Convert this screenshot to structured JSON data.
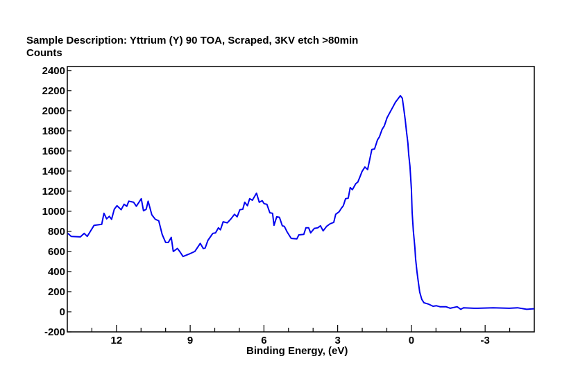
{
  "chart_data": {
    "type": "line",
    "title": "Sample Description:  Yttrium (Y) 90 TOA, Scraped, 3KV etch >80min",
    "ylabel": "Counts",
    "xlabel": "Binding Energy, (eV)",
    "xlim": [
      14,
      -5
    ],
    "ylim": [
      -200,
      2440
    ],
    "x_reversed": true,
    "grid": false,
    "x_ticks": [
      12,
      9,
      6,
      3,
      0,
      -3
    ],
    "x_tick_labels": [
      "12",
      "9",
      "6",
      "3",
      "0",
      "-3"
    ],
    "x_minor_step": 1,
    "y_ticks": [
      2400,
      2200,
      2000,
      1800,
      1600,
      1400,
      1200,
      1000,
      800,
      600,
      400,
      200,
      0,
      -200
    ],
    "y_tick_labels": [
      "2400",
      "2200",
      "2000",
      "1800",
      "1600",
      "1400",
      "1200",
      "1000",
      "800",
      "600",
      "400",
      "200",
      "0",
      "-200"
    ],
    "series": [
      {
        "name": "Yttrium (Y) 90 TOA",
        "color": "#0000ee",
        "x": [
          13.98,
          13.84,
          13.47,
          13.31,
          13.19,
          12.91,
          12.6,
          12.51,
          12.4,
          12.29,
          12.2,
          12.09,
          11.98,
          11.81,
          11.69,
          11.58,
          11.5,
          11.3,
          11.19,
          10.99,
          10.9,
          10.79,
          10.71,
          10.56,
          10.42,
          10.28,
          10.14,
          10.0,
          9.89,
          9.77,
          9.69,
          9.52,
          9.44,
          9.29,
          9.04,
          8.81,
          8.59,
          8.47,
          8.39,
          8.28,
          8.08,
          7.97,
          7.85,
          7.77,
          7.66,
          7.49,
          7.34,
          7.2,
          7.09,
          6.98,
          6.86,
          6.78,
          6.67,
          6.58,
          6.47,
          6.3,
          6.19,
          6.07,
          5.99,
          5.88,
          5.76,
          5.65,
          5.59,
          5.48,
          5.37,
          5.25,
          5.17,
          5.06,
          4.89,
          4.66,
          4.58,
          4.38,
          4.29,
          4.18,
          4.1,
          3.95,
          3.81,
          3.7,
          3.59,
          3.45,
          3.31,
          3.16,
          3.08,
          2.94,
          2.85,
          2.77,
          2.68,
          2.57,
          2.49,
          2.4,
          2.26,
          2.18,
          2.09,
          2.01,
          1.89,
          1.78,
          1.69,
          1.61,
          1.5,
          1.38,
          1.3,
          1.19,
          1.1,
          0.99,
          0.88,
          0.76,
          0.65,
          0.54,
          0.45,
          0.37,
          0.31,
          0.25,
          0.2,
          0.14,
          0.11,
          0.06,
          0.0,
          -0.03,
          -0.08,
          -0.14,
          -0.17,
          -0.23,
          -0.28,
          -0.34,
          -0.42,
          -0.51,
          -0.71,
          -0.88,
          -1.02,
          -1.16,
          -1.41,
          -1.58,
          -1.86,
          -2.01,
          -2.12,
          -2.54,
          -2.71,
          -3.33,
          -3.98,
          -4.32,
          -4.69,
          -5.0
        ],
        "y": [
          780,
          750,
          745,
          780,
          750,
          860,
          870,
          980,
          925,
          950,
          920,
          1020,
          1055,
          1015,
          1070,
          1050,
          1100,
          1090,
          1050,
          1125,
          1005,
          1020,
          1100,
          965,
          920,
          905,
          770,
          690,
          690,
          740,
          600,
          630,
          605,
          550,
          575,
          600,
          680,
          630,
          635,
          710,
          780,
          785,
          835,
          815,
          895,
          885,
          925,
          970,
          945,
          1015,
          1020,
          1090,
          1055,
          1125,
          1110,
          1180,
          1090,
          1105,
          1075,
          1070,
          985,
          980,
          860,
          945,
          940,
          855,
          850,
          795,
          730,
          725,
          765,
          770,
          835,
          835,
          785,
          830,
          835,
          855,
          805,
          850,
          875,
          890,
          970,
          995,
          1030,
          1055,
          1125,
          1130,
          1235,
          1215,
          1275,
          1290,
          1345,
          1395,
          1440,
          1415,
          1520,
          1615,
          1620,
          1710,
          1740,
          1815,
          1850,
          1930,
          1980,
          2035,
          2085,
          2120,
          2150,
          2125,
          2020,
          1910,
          1795,
          1675,
          1565,
          1450,
          1220,
          985,
          805,
          640,
          530,
          395,
          300,
          195,
          125,
          90,
          75,
          55,
          60,
          50,
          50,
          35,
          50,
          25,
          40,
          35,
          35,
          40,
          35,
          40,
          25,
          30
        ]
      }
    ]
  }
}
